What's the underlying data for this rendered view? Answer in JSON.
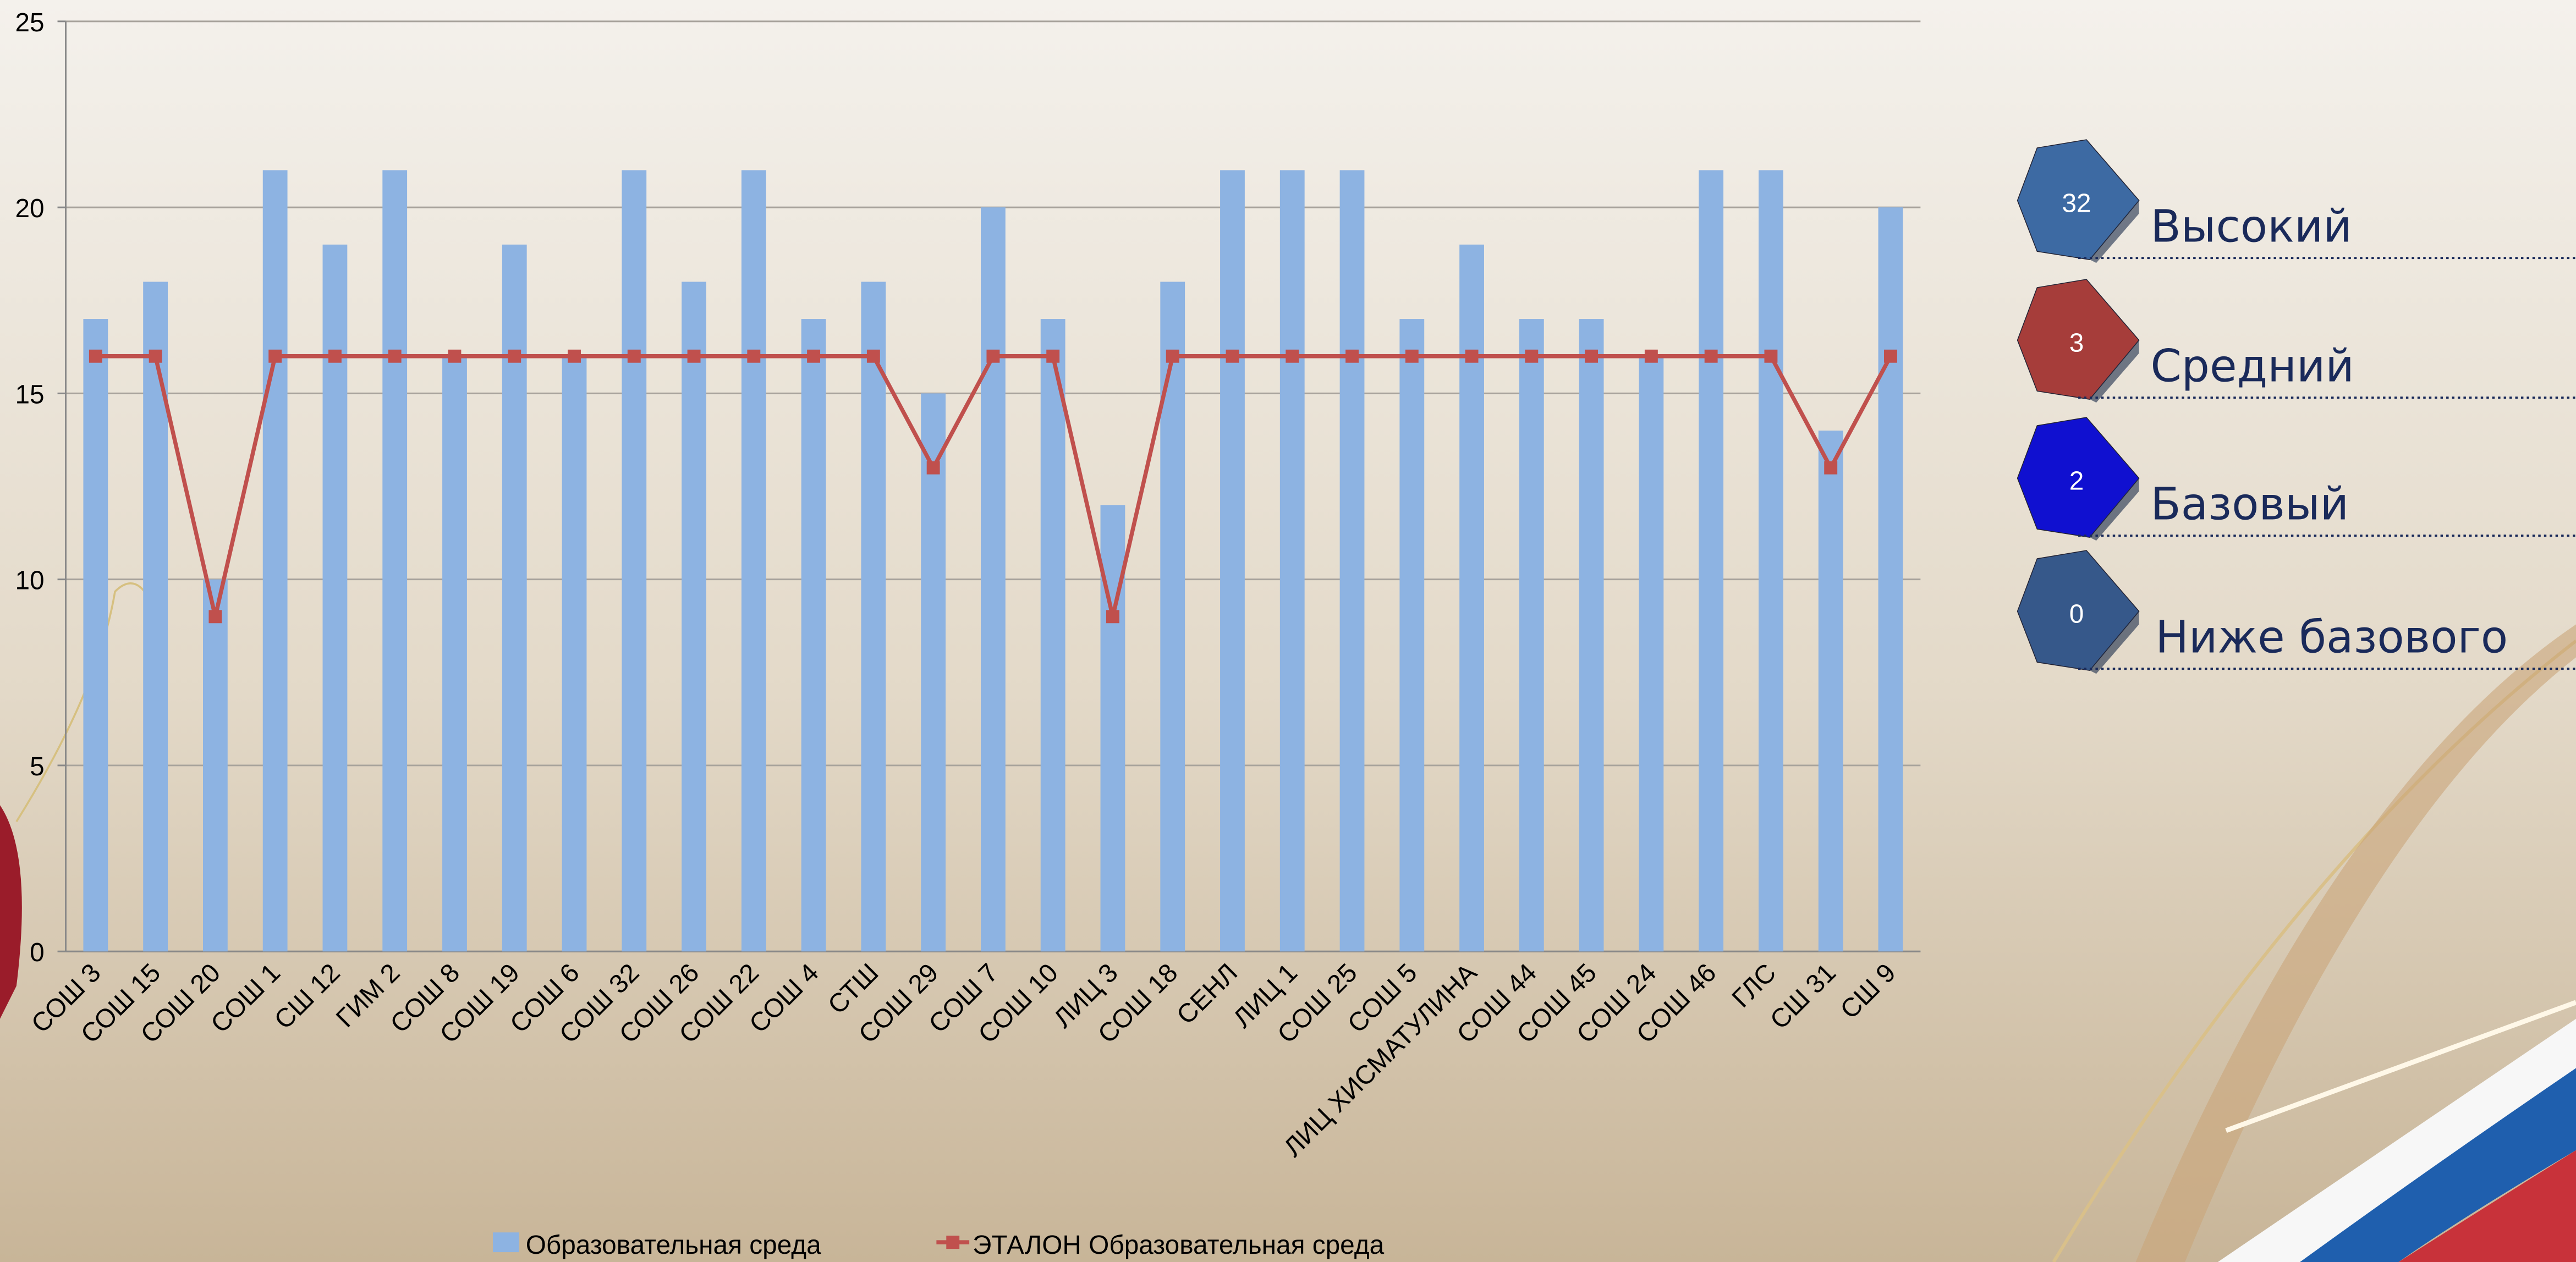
{
  "chart_data": {
    "type": "bar_line",
    "categories": [
      "СОШ 3",
      "СОШ 15",
      "СОШ 20",
      "СОШ 1",
      "СШ 12",
      "ГИМ 2",
      "СОШ 8",
      "СОШ 19",
      "СОШ 6",
      "СОШ 32",
      "СОШ 26",
      "СОШ 22",
      "СОШ 4",
      "СТШ",
      "СОШ 29",
      "СОШ 7",
      "СОШ 10",
      "ЛИЦ 3",
      "СОШ 18",
      "СЕНЛ",
      "ЛИЦ 1",
      "СОШ 25",
      "СОШ 5",
      "ЛИЦ ХИСМАТУЛИНА",
      "СОШ 44",
      "СОШ 45",
      "СОШ 24",
      "СОШ 46",
      "ГЛС",
      "СШ 31",
      "СШ 9"
    ],
    "series": [
      {
        "name": "Образовательная среда",
        "color": "#8db3e2",
        "type": "bar",
        "values": [
          17,
          18,
          10,
          21,
          19,
          21,
          16,
          19,
          16,
          21,
          18,
          21,
          17,
          18,
          15,
          20,
          17,
          12,
          18,
          21,
          21,
          21,
          17,
          19,
          17,
          17,
          16,
          21,
          21,
          14,
          20
        ]
      },
      {
        "name": "ЭТАЛОН Образовательная среда",
        "color": "#c0504d",
        "type": "line",
        "values": [
          16,
          16,
          9,
          16,
          16,
          16,
          16,
          16,
          16,
          16,
          16,
          16,
          16,
          16,
          13,
          16,
          16,
          9,
          16,
          16,
          16,
          16,
          16,
          16,
          16,
          16,
          16,
          16,
          16,
          13,
          16
        ]
      }
    ],
    "ylim": [
      0,
      25
    ],
    "yticks": [
      0,
      5,
      10,
      15,
      20,
      25
    ],
    "grid": true,
    "legend": "bottom"
  },
  "levels": [
    {
      "count": "32",
      "label": "Высокий",
      "color": "#3d6aa3"
    },
    {
      "count": "3",
      "label": "Средний",
      "color": "#a63d3a"
    },
    {
      "count": "2",
      "label": "Базовый",
      "color": "#1010d0"
    },
    {
      "count": "0",
      "label": "Ниже базового",
      "color": "#36588a"
    }
  ]
}
